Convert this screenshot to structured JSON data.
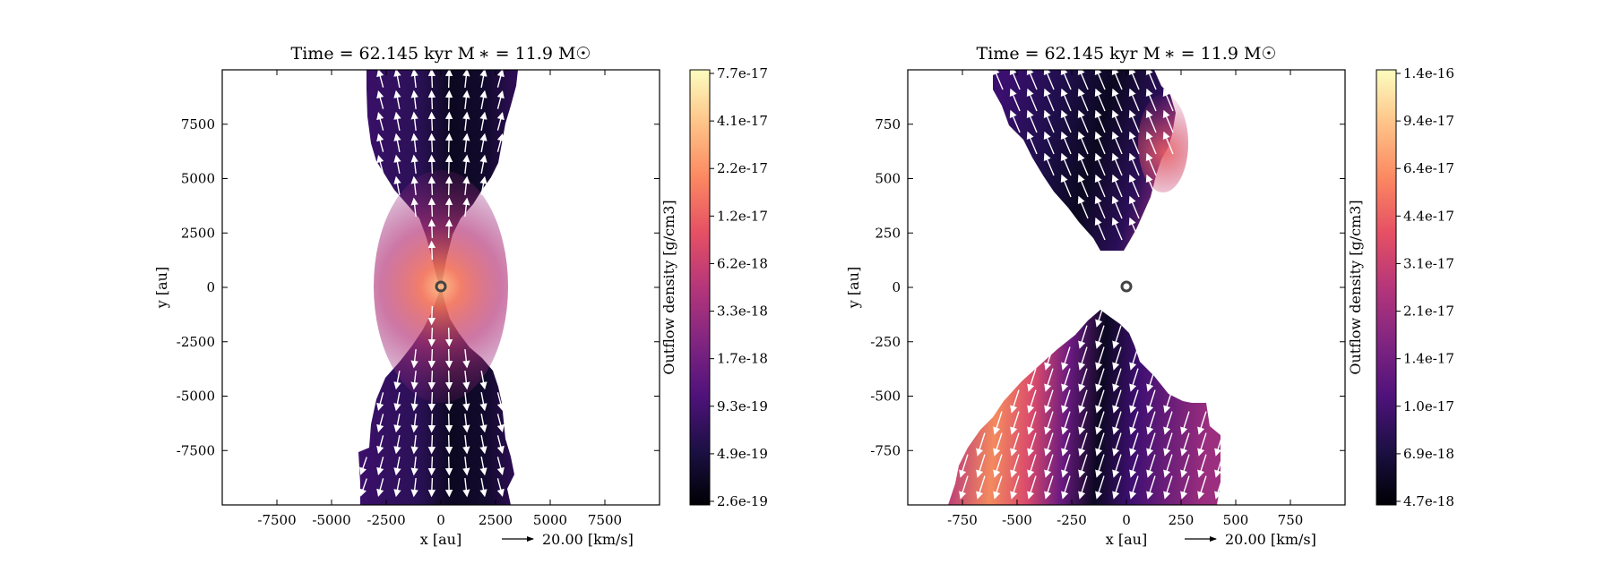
{
  "figure": {
    "panels": [
      {
        "title": "Time = 62.145 kyr    M ∗ = 11.9 M☉",
        "xlabel": "x [au]",
        "ylabel": "y [au]",
        "vector_key_label": "20.00 [km/s]",
        "colorbar_label": "Outflow density [g/cm3]"
      },
      {
        "title": "Time = 62.145 kyr    M ∗ = 11.9 M☉",
        "xlabel": "x [au]",
        "ylabel": "y [au]",
        "vector_key_label": "20.00 [km/s]",
        "colorbar_label": "Outflow density [g/cm3]"
      }
    ]
  },
  "chart_data": [
    {
      "type": "heatmap",
      "title": "Time = 62.145 kyr    M ∗ = 11.9 M☉",
      "xlabel": "x [au]",
      "ylabel": "y [au]",
      "xlim": [
        -10000,
        10000
      ],
      "ylim": [
        -10000,
        10000
      ],
      "x_ticks": [
        -7500,
        -5000,
        -2500,
        0,
        2500,
        5000,
        7500
      ],
      "x_tick_labels": [
        "-7500",
        "-5000",
        "-2500",
        "0",
        "2500",
        "5000",
        "7500"
      ],
      "y_ticks": [
        7500,
        5000,
        2500,
        0,
        -2500,
        -5000,
        -7500
      ],
      "y_tick_labels": [
        "7500",
        "5000",
        "2500",
        "0",
        "-2500",
        "-5000",
        "-7500"
      ],
      "colorbar": {
        "label": "Outflow density [g/cm3]",
        "scale": "log",
        "colormap": "magma",
        "tick_labels": [
          "7.7e-17",
          "4.1e-17",
          "2.2e-17",
          "1.2e-17",
          "6.2e-18",
          "3.3e-18",
          "1.7e-18",
          "9.3e-19",
          "4.9e-19",
          "2.6e-19"
        ],
        "min": 2.6e-19,
        "max": 7.7e-17
      },
      "velocity_key": {
        "speed_kms": 20.0,
        "label": "20.00 [km/s]"
      },
      "star_position": [
        0,
        0
      ],
      "outflow_shape": "bipolar hourglass lobes along the y axis, pinched at the star, densest along the lobe edges near the origin",
      "grid": false
    },
    {
      "type": "heatmap",
      "title": "Time = 62.145 kyr    M ∗ = 11.9 M☉",
      "xlabel": "x [au]",
      "ylabel": "y [au]",
      "xlim": [
        -1000,
        1000
      ],
      "ylim": [
        -1000,
        1000
      ],
      "x_ticks": [
        -750,
        -500,
        -250,
        0,
        250,
        500,
        750
      ],
      "x_tick_labels": [
        "-750",
        "-500",
        "-250",
        "0",
        "250",
        "500",
        "750"
      ],
      "y_ticks": [
        750,
        500,
        250,
        0,
        -250,
        -500,
        -750
      ],
      "y_tick_labels": [
        "750",
        "500",
        "250",
        "0",
        "-250",
        "-500",
        "-750"
      ],
      "colorbar": {
        "label": "Outflow density [g/cm3]",
        "scale": "log",
        "colormap": "magma",
        "tick_labels": [
          "1.4e-16",
          "9.4e-17",
          "6.4e-17",
          "4.4e-17",
          "3.1e-17",
          "2.1e-17",
          "1.4e-17",
          "1.0e-17",
          "6.9e-18",
          "4.7e-18"
        ],
        "min": 4.7e-18,
        "max": 1.4e-16
      },
      "velocity_key": {
        "speed_kms": 20.0,
        "label": "20.00 [km/s]"
      },
      "star_position": [
        0,
        0
      ],
      "outflow_shape": "tilted bipolar outflow, upper lobe pointing up-left and lower lobe fanning down-left, with a gap around the star",
      "grid": false
    }
  ],
  "colors": {
    "magma_stops": [
      "#000004",
      "#1c1044",
      "#4f127b",
      "#812581",
      "#b5367a",
      "#e55064",
      "#fb8761",
      "#fec287",
      "#fcfdbf"
    ],
    "arrow": "#ffffff",
    "star_marker": "#444444"
  }
}
